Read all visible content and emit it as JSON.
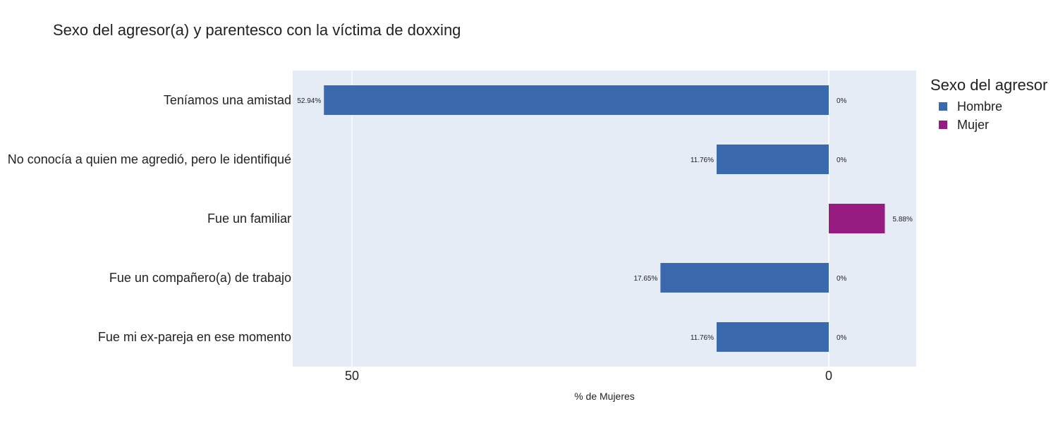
{
  "chart_data": {
    "type": "bar",
    "orientation": "horizontal",
    "barmode": "relative",
    "title": "Sexo del agresor(a) y parentesco con la víctima de doxxing",
    "xlabel": "% de Mujeres",
    "ylabel": "",
    "x_reversed": true,
    "xlim": [
      -6.2,
      56.2
    ],
    "xticks": [
      50,
      0
    ],
    "categories": [
      "Teníamos una amistad",
      "No conocía a quien me agredió, pero le identifiqué",
      "Fue un familiar",
      "Fue un compañero(a) de trabajo",
      "Fue mi ex-pareja en ese momento"
    ],
    "legend_title": "Sexo del agresor",
    "legend_position": "top-right",
    "grid": true,
    "series": [
      {
        "name": "Hombre",
        "color": "#3a69ad",
        "direction": 1,
        "values": [
          52.94,
          11.76,
          0,
          17.65,
          11.76
        ],
        "labels": [
          "52.94%",
          "11.76%",
          "",
          "17.65%",
          "11.76%"
        ]
      },
      {
        "name": "Mujer",
        "color": "#961c82",
        "direction": -1,
        "values": [
          0,
          0,
          5.88,
          0,
          0
        ],
        "labels": [
          "0%",
          "0%",
          "5.88%",
          "0%",
          "0%"
        ]
      }
    ]
  }
}
